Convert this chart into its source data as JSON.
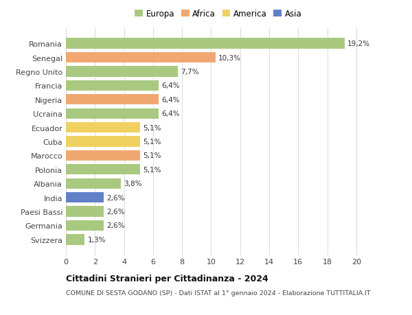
{
  "countries": [
    "Romania",
    "Senegal",
    "Regno Unito",
    "Francia",
    "Nigeria",
    "Ucraina",
    "Ecuador",
    "Cuba",
    "Marocco",
    "Polonia",
    "Albania",
    "India",
    "Paesi Bassi",
    "Germania",
    "Svizzera"
  ],
  "values": [
    19.2,
    10.3,
    7.7,
    6.4,
    6.4,
    6.4,
    5.1,
    5.1,
    5.1,
    5.1,
    3.8,
    2.6,
    2.6,
    2.6,
    1.3
  ],
  "labels": [
    "19,2%",
    "10,3%",
    "7,7%",
    "6,4%",
    "6,4%",
    "6,4%",
    "5,1%",
    "5,1%",
    "5,1%",
    "5,1%",
    "3,8%",
    "2,6%",
    "2,6%",
    "2,6%",
    "1,3%"
  ],
  "continents": [
    "Europa",
    "Africa",
    "Europa",
    "Europa",
    "Africa",
    "Europa",
    "America",
    "America",
    "Africa",
    "Europa",
    "Europa",
    "Asia",
    "Europa",
    "Europa",
    "Europa"
  ],
  "colors": {
    "Europa": "#a8c97f",
    "Africa": "#f0a870",
    "America": "#f0d060",
    "Asia": "#6080c8"
  },
  "legend_order": [
    "Europa",
    "Africa",
    "America",
    "Asia"
  ],
  "title": "Cittadini Stranieri per Cittadinanza - 2024",
  "subtitle": "COMUNE DI SESTA GODANO (SP) - Dati ISTAT al 1° gennaio 2024 - Elaborazione TUTTITALIA.IT",
  "xlim": [
    0,
    21
  ],
  "xticks": [
    0,
    2,
    4,
    6,
    8,
    10,
    12,
    14,
    16,
    18,
    20
  ],
  "background_color": "#ffffff",
  "grid_color": "#dddddd",
  "bar_height": 0.75
}
